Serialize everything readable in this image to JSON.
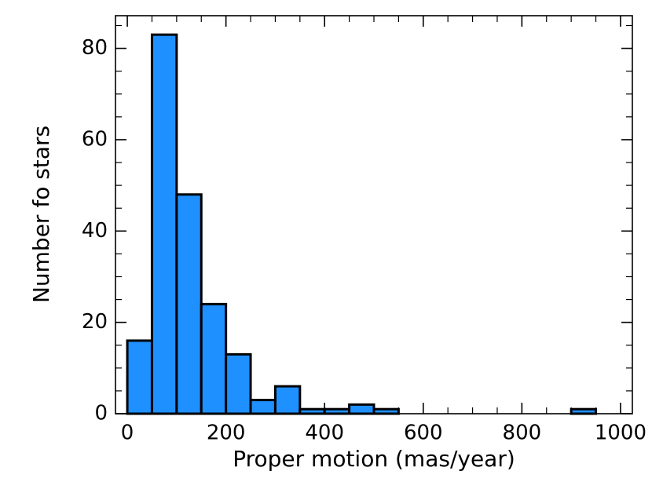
{
  "chart_data": {
    "type": "histogram",
    "bins": [
      0,
      50,
      100,
      150,
      200,
      250,
      300,
      350,
      400,
      450,
      500,
      550,
      600,
      650,
      700,
      750,
      800,
      850,
      900,
      950,
      1000
    ],
    "values": [
      16,
      83,
      48,
      24,
      13,
      3,
      6,
      1,
      1,
      2,
      1,
      0,
      0,
      0,
      0,
      0,
      0,
      0,
      1,
      0
    ],
    "color": "#1e90ff",
    "edgecolor": "#000000",
    "xlabel": "Proper motion (mas/year)",
    "ylabel": "Number fo stars",
    "xlim": [
      -24,
      1024
    ],
    "ylim": [
      0,
      87.15
    ],
    "xticks": [
      0,
      200,
      400,
      600,
      800,
      1000
    ],
    "yticks": [
      0,
      20,
      40,
      60,
      80
    ],
    "xminorticks": [
      50,
      100,
      150,
      250,
      300,
      350,
      450,
      500,
      550,
      650,
      700,
      750,
      850,
      900,
      950
    ],
    "yminorticks": [
      5,
      10,
      15,
      25,
      30,
      35,
      45,
      50,
      55,
      65,
      70,
      75,
      85
    ],
    "tick_direction": "in",
    "mirror_ticks": true
  }
}
